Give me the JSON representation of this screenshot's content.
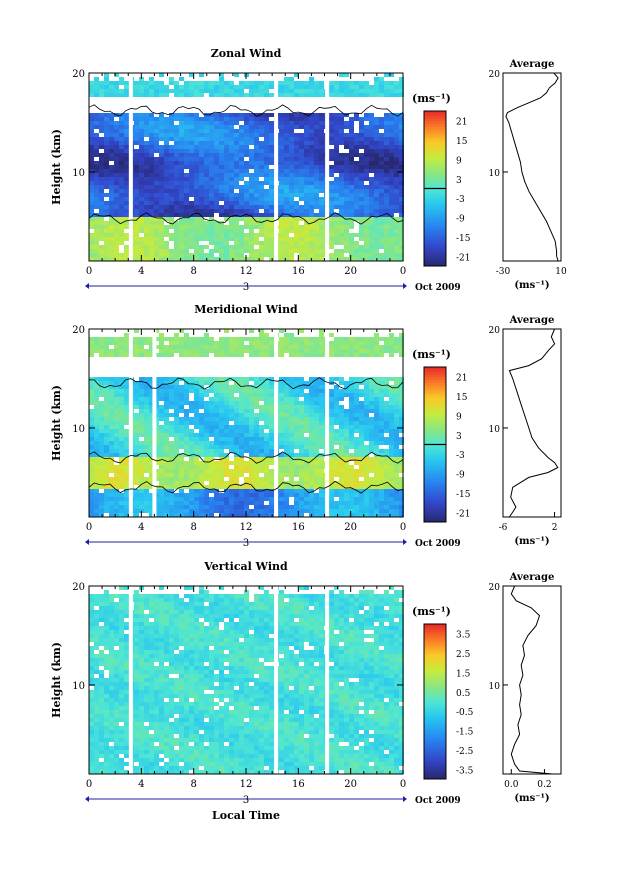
{
  "chart_data": [
    {
      "type": "heatmap",
      "title": "Zonal Wind",
      "ylabel": "Height (km)",
      "xlabel": "",
      "x_ticks": [
        "0",
        "4",
        "8",
        "12",
        "16",
        "20",
        "0"
      ],
      "y_ticks": [
        "20",
        "10"
      ],
      "xlim": [
        0,
        24
      ],
      "ylim": [
        1,
        20
      ],
      "date_day": "3",
      "date_label": "Oct 2009",
      "colorbar": {
        "unit": "(ms⁻¹)",
        "ticks": [
          "21",
          "15",
          "9",
          "3",
          "-3",
          "-9",
          "-15",
          "-21"
        ],
        "range": [
          -24,
          24
        ],
        "zero_contour_value": 0
      },
      "average_profile": {
        "title": "Average",
        "unit": "(ms⁻¹)",
        "x_ticks": [
          "-30",
          "10"
        ],
        "xlim": [
          -30,
          10
        ],
        "y_ticks": [
          "20",
          "10"
        ],
        "points": [
          {
            "h": 1.0,
            "v": 8
          },
          {
            "h": 1.5,
            "v": 7
          },
          {
            "h": 2,
            "v": 7
          },
          {
            "h": 3,
            "v": 6
          },
          {
            "h": 4,
            "v": 3
          },
          {
            "h": 5,
            "v": 0
          },
          {
            "h": 6,
            "v": -4
          },
          {
            "h": 7,
            "v": -8
          },
          {
            "h": 8,
            "v": -12
          },
          {
            "h": 9,
            "v": -15
          },
          {
            "h": 10,
            "v": -17
          },
          {
            "h": 11,
            "v": -18
          },
          {
            "h": 12,
            "v": -20
          },
          {
            "h": 13,
            "v": -22
          },
          {
            "h": 14,
            "v": -24
          },
          {
            "h": 15,
            "v": -26
          },
          {
            "h": 15.6,
            "v": -28
          },
          {
            "h": 16,
            "v": -27
          },
          {
            "h": 16.5,
            "v": -20
          },
          {
            "h": 17,
            "v": -12
          },
          {
            "h": 17.5,
            "v": -4
          },
          {
            "h": 18,
            "v": 0
          },
          {
            "h": 18.5,
            "v": 2
          },
          {
            "h": 19,
            "v": 6
          },
          {
            "h": 19.5,
            "v": 8
          },
          {
            "h": 20,
            "v": 5
          }
        ]
      }
    },
    {
      "type": "heatmap",
      "title": "Meridional Wind",
      "ylabel": "Height (km)",
      "xlabel": "",
      "x_ticks": [
        "0",
        "4",
        "8",
        "12",
        "16",
        "20",
        "0"
      ],
      "y_ticks": [
        "20",
        "10"
      ],
      "xlim": [
        0,
        24
      ],
      "ylim": [
        1,
        20
      ],
      "date_day": "3",
      "date_label": "Oct 2009",
      "colorbar": {
        "unit": "(ms⁻¹)",
        "ticks": [
          "21",
          "15",
          "9",
          "3",
          "-3",
          "-9",
          "-15",
          "-21"
        ],
        "range": [
          -24,
          24
        ],
        "zero_contour_value": 0
      },
      "average_profile": {
        "title": "Average",
        "unit": "(ms⁻¹)",
        "x_ticks": [
          "-6",
          "2"
        ],
        "xlim": [
          -6,
          3
        ],
        "y_ticks": [
          "20",
          "10"
        ],
        "points": [
          {
            "h": 1.0,
            "v": -5
          },
          {
            "h": 1.5,
            "v": -4.5
          },
          {
            "h": 2,
            "v": -4
          },
          {
            "h": 3,
            "v": -4.8
          },
          {
            "h": 4,
            "v": -4.5
          },
          {
            "h": 5,
            "v": -2
          },
          {
            "h": 5.5,
            "v": 1
          },
          {
            "h": 6,
            "v": 2.5
          },
          {
            "h": 6.5,
            "v": 2
          },
          {
            "h": 7,
            "v": 1
          },
          {
            "h": 8,
            "v": -0.5
          },
          {
            "h": 9,
            "v": -1.5
          },
          {
            "h": 10,
            "v": -2
          },
          {
            "h": 11,
            "v": -2.5
          },
          {
            "h": 12,
            "v": -3
          },
          {
            "h": 13,
            "v": -3.5
          },
          {
            "h": 14,
            "v": -4
          },
          {
            "h": 15,
            "v": -4.5
          },
          {
            "h": 15.8,
            "v": -5
          },
          {
            "h": 16.3,
            "v": -2
          },
          {
            "h": 17,
            "v": 0
          },
          {
            "h": 17.8,
            "v": 1
          },
          {
            "h": 18.5,
            "v": 2
          },
          {
            "h": 19.2,
            "v": 1.5
          },
          {
            "h": 20,
            "v": 2
          }
        ]
      }
    },
    {
      "type": "heatmap",
      "title": "Vertical Wind",
      "ylabel": "Height (km)",
      "xlabel": "Local Time",
      "x_ticks": [
        "0",
        "4",
        "8",
        "12",
        "16",
        "20",
        "0"
      ],
      "y_ticks": [
        "20",
        "10"
      ],
      "xlim": [
        0,
        24
      ],
      "ylim": [
        1,
        20
      ],
      "date_day": "3",
      "date_label": "Oct 2009",
      "colorbar": {
        "unit": "(ms⁻¹)",
        "ticks": [
          "3.5",
          "2.5",
          "1.5",
          "0.5",
          "-0.5",
          "-1.5",
          "-2.5",
          "-3.5"
        ],
        "range": [
          -4,
          4
        ]
      },
      "average_profile": {
        "title": "Average",
        "unit": "(ms⁻¹)",
        "x_ticks": [
          "0.0",
          "0.2"
        ],
        "xlim": [
          -0.05,
          0.3
        ],
        "y_ticks": [
          "20",
          "10"
        ],
        "points": [
          {
            "h": 1.0,
            "v": 0.25
          },
          {
            "h": 1.3,
            "v": 0.05
          },
          {
            "h": 2,
            "v": 0.02
          },
          {
            "h": 3,
            "v": 0.0
          },
          {
            "h": 4,
            "v": 0.02
          },
          {
            "h": 5,
            "v": 0.05
          },
          {
            "h": 6,
            "v": 0.04
          },
          {
            "h": 7,
            "v": 0.06
          },
          {
            "h": 8,
            "v": 0.05
          },
          {
            "h": 9,
            "v": 0.06
          },
          {
            "h": 10,
            "v": 0.05
          },
          {
            "h": 11,
            "v": 0.07
          },
          {
            "h": 12,
            "v": 0.06
          },
          {
            "h": 13,
            "v": 0.08
          },
          {
            "h": 14,
            "v": 0.07
          },
          {
            "h": 15,
            "v": 0.1
          },
          {
            "h": 16,
            "v": 0.15
          },
          {
            "h": 17,
            "v": 0.17
          },
          {
            "h": 17.8,
            "v": 0.12
          },
          {
            "h": 18.5,
            "v": 0.03
          },
          {
            "h": 19.2,
            "v": 0.0
          },
          {
            "h": 20,
            "v": 0.02
          }
        ]
      }
    }
  ]
}
